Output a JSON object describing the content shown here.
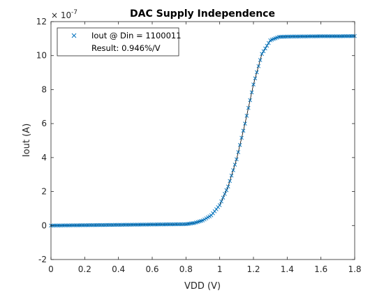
{
  "chart_data": {
    "type": "scatter",
    "title": "DAC Supply Independence",
    "xlabel": "VDD (V)",
    "ylabel": "Iout (A)",
    "y_exponent_base": "× 10",
    "y_exponent_power": "-7",
    "xlim": [
      0,
      1.8
    ],
    "ylim": [
      -2,
      12
    ],
    "xticks": [
      0,
      0.2,
      0.4,
      0.6,
      0.8,
      1,
      1.2,
      1.4,
      1.6,
      1.8
    ],
    "xtick_labels": [
      "0",
      "0.2",
      "0.4",
      "0.6",
      "0.8",
      "1",
      "1.2",
      "1.4",
      "1.6",
      "1.8"
    ],
    "yticks": [
      -2,
      0,
      2,
      4,
      6,
      8,
      10,
      12
    ],
    "ytick_labels": [
      "-2",
      "0",
      "2",
      "4",
      "6",
      "8",
      "10",
      "12"
    ],
    "grid": false,
    "legend_position": "top-left",
    "legend": {
      "entry": "Iout @ Din = 1100011",
      "note": "Result: 0.946%/V"
    },
    "series": [
      {
        "name": "Iout @ Din = 1100011",
        "marker": "x",
        "color": "#0072bd",
        "line_color": "#000000",
        "x": [
          0,
          0.8,
          0.85,
          0.9,
          0.95,
          1.0,
          1.05,
          1.1,
          1.15,
          1.2,
          1.25,
          1.3,
          1.35,
          1.4,
          1.5,
          1.6,
          1.7,
          1.8
        ],
        "y": [
          0,
          0.08,
          0.15,
          0.3,
          0.6,
          1.2,
          2.3,
          3.9,
          6.0,
          8.3,
          10.1,
          10.9,
          11.1,
          11.12,
          11.13,
          11.14,
          11.14,
          11.15
        ]
      }
    ]
  }
}
